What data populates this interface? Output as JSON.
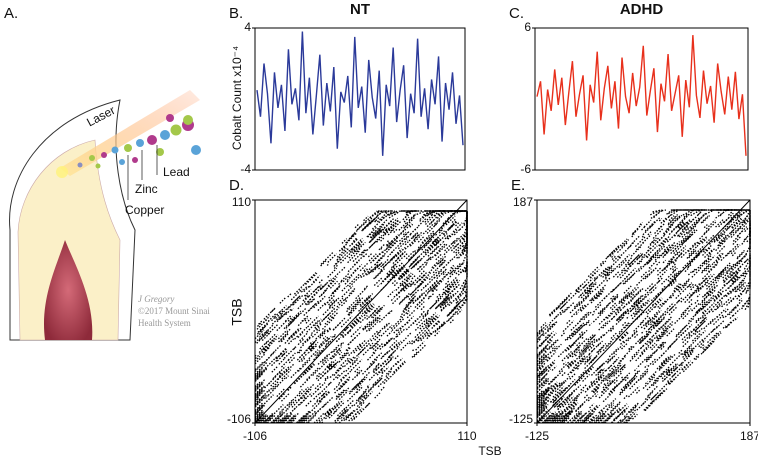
{
  "illustration": {
    "panel": "A.",
    "laser": "Laser",
    "lead": "Lead",
    "zinc": "Zinc",
    "copper": "Copper",
    "credit": [
      "J Gregory",
      "©2017 Mount Sinai",
      "Health System"
    ]
  },
  "shared_xlabel": "TSB",
  "chart_data": [
    {
      "type": "line",
      "panel": "B.",
      "title": "NT",
      "ylabel": "Cobalt Count x10⁻⁴",
      "color": "#2b3a9a",
      "ylim": [
        -4,
        4
      ],
      "yticks": [
        -4,
        4
      ],
      "values": [
        0.5,
        -1,
        2,
        0.3,
        -2.5,
        1.5,
        -0.5,
        0.8,
        -1.8,
        2.8,
        -0.3,
        0.6,
        -1.2,
        3.8,
        -0.8,
        1.2,
        -2,
        0.2,
        2.5,
        -1.5,
        0.9,
        -0.7,
        1.8,
        -2.8,
        0.4,
        -0.2,
        1.3,
        -1.6,
        3.5,
        -0.5,
        0.7,
        -1.9,
        2.2,
        0.1,
        -1.1,
        1.6,
        -3.2,
        0.8,
        -0.4,
        2.9,
        -1.3,
        0.5,
        1.9,
        -2.2,
        0.3,
        -0.8,
        3.4,
        -1,
        0.6,
        -1.7,
        1.1,
        -0.3,
        2.4,
        -2.4,
        0.9,
        -0.6,
        1.5,
        -1.4,
        0.2,
        -2.6
      ]
    },
    {
      "type": "line",
      "panel": "C.",
      "title": "ADHD",
      "color": "#e8301c",
      "ylim": [
        -6,
        6
      ],
      "yticks": [
        -6,
        6
      ],
      "values": [
        0.2,
        1.5,
        -3,
        0.8,
        -1,
        2.5,
        -0.5,
        1.8,
        -2.2,
        0.6,
        3.2,
        -1.5,
        0.4,
        2,
        -3.5,
        1.2,
        -0.3,
        4,
        -1.8,
        0.9,
        2.8,
        -0.8,
        1.5,
        -2.5,
        3.5,
        0.2,
        -1.2,
        2.2,
        -0.6,
        1,
        4.5,
        -1.4,
        0.7,
        2.6,
        -2.8,
        1.3,
        -0.2,
        3.8,
        -1,
        0.5,
        2,
        -3.2,
        1.6,
        -0.7,
        5.4,
        0.3,
        -1.6,
        2.4,
        -0.4,
        1.1,
        -2,
        3,
        0.6,
        -1.3,
        1.9,
        -0.9,
        2.3,
        -1.7,
        0.4,
        -4.8
      ]
    },
    {
      "type": "recurrence",
      "panel": "D.",
      "ylabel": "TSB",
      "xlim": [
        -106,
        110
      ],
      "ylim": [
        -106,
        110
      ],
      "xticks": [
        -106,
        110
      ],
      "yticks": [
        -106,
        110
      ]
    },
    {
      "type": "recurrence",
      "panel": "E.",
      "xlim": [
        -125,
        187
      ],
      "ylim": [
        -125,
        187
      ],
      "xticks": [
        -125,
        187
      ],
      "yticks": [
        -125,
        187
      ]
    }
  ]
}
